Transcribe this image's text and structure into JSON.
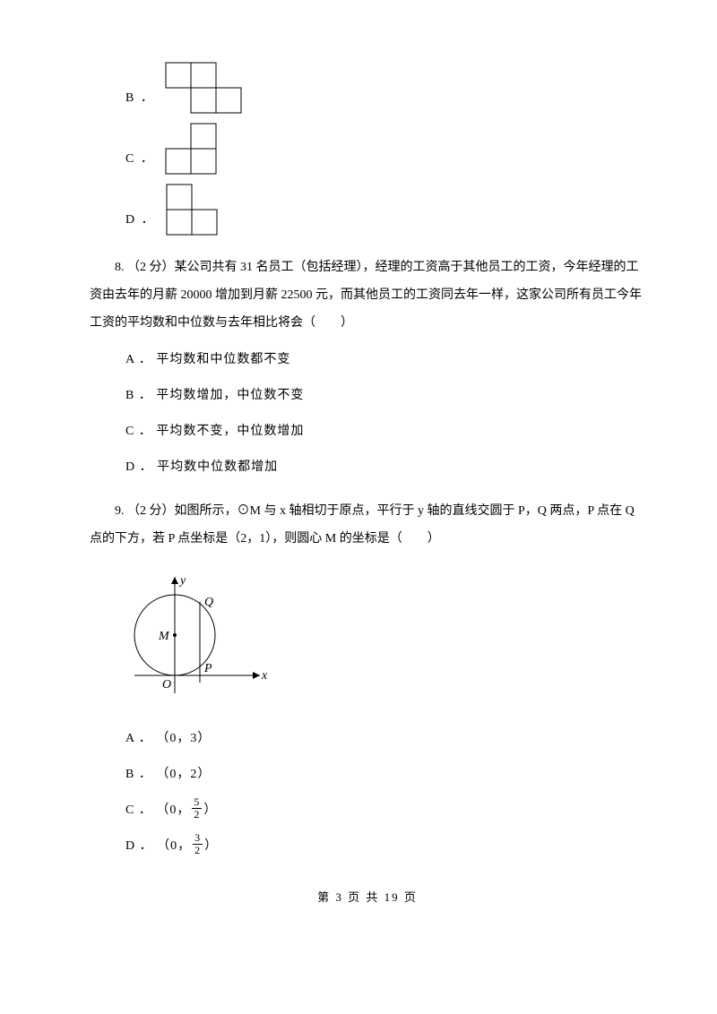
{
  "options7": {
    "B": {
      "label": "B ．"
    },
    "C": {
      "label": "C ．"
    },
    "D": {
      "label": "D ．"
    }
  },
  "q8": {
    "text": "8. （2 分）某公司共有 31 名员工（包括经理），经理的工资高于其他员工的工资，今年经理的工资由去年的月薪 20000 增加到月薪 22500 元，而其他员工的工资同去年一样，这家公司所有员工今年工资的平均数和中位数与去年相比将会（　　）",
    "A": "A ． 平均数和中位数都不变",
    "B": "B ． 平均数增加，中位数不变",
    "C": "C ． 平均数不变，中位数增加",
    "D": "D ． 平均数中位数都增加"
  },
  "q9": {
    "text": "9. （2 分）如图所示，⊙M 与 x 轴相切于原点，平行于 y 轴的直线交圆于 P，Q 两点，P 点在 Q 点的下方，若 P 点坐标是（2，1），则圆心 M 的坐标是（　　）",
    "A": "A ． （0，3）",
    "B": "B ． （0，2）",
    "C_prefix": "C ． （0，",
    "C_suffix": "）",
    "C_num": "5",
    "C_den": "2",
    "D_prefix": "D ． （0，",
    "D_suffix": "）",
    "D_num": "3",
    "D_den": "2"
  },
  "diagram": {
    "labels": {
      "y": "y",
      "x": "x",
      "M": "M",
      "Q": "Q",
      "P": "P",
      "O": "O"
    },
    "stroke": "#000000",
    "stroke_width": 1,
    "font": "italic 14px serif"
  },
  "shapes": {
    "cell": 28,
    "stroke": "#000000",
    "stroke_width": 1,
    "B": {
      "cells": [
        [
          0,
          0
        ],
        [
          0,
          1
        ],
        [
          1,
          1
        ],
        [
          1,
          2
        ]
      ],
      "cols": 3,
      "rows": 2
    },
    "C": {
      "cells": [
        [
          0,
          1
        ],
        [
          1,
          0
        ],
        [
          1,
          1
        ]
      ],
      "cols": 2,
      "rows": 2
    },
    "D": {
      "cells": [
        [
          0,
          0
        ],
        [
          1,
          0
        ],
        [
          1,
          1
        ]
      ],
      "cols": 2,
      "rows": 2
    }
  },
  "footer": {
    "text": "第 3 页 共 19 页"
  }
}
